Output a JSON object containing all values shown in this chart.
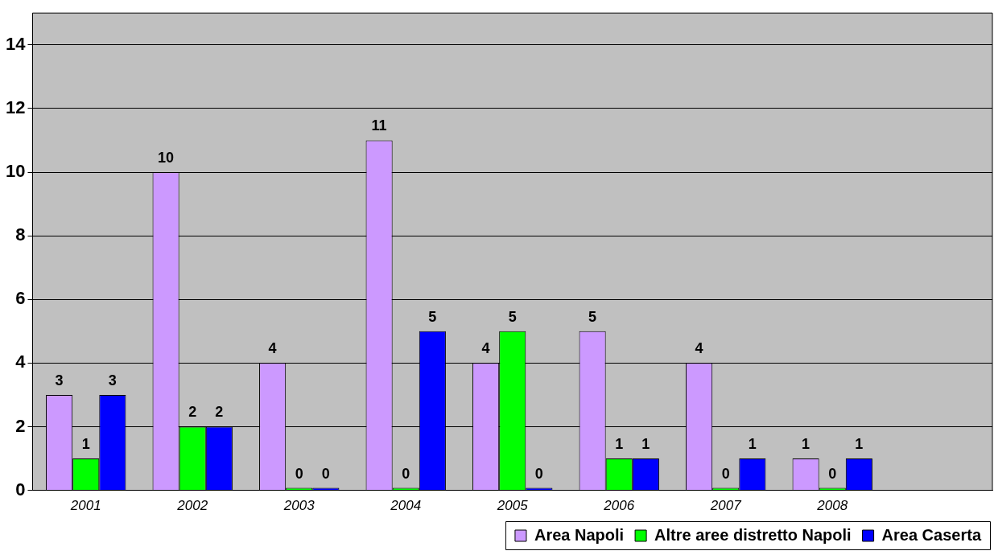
{
  "chart_data": {
    "type": "bar",
    "categories": [
      "2001",
      "2002",
      "2003",
      "2004",
      "2005",
      "2006",
      "2007",
      "2008",
      null
    ],
    "series": [
      {
        "name": "Area Napoli",
        "color": "#cc99ff",
        "values": [
          3,
          10,
          4,
          11,
          4,
          5,
          4,
          1,
          null
        ]
      },
      {
        "name": "Altre aree distretto Napoli",
        "color": "#00ff00",
        "values": [
          1,
          2,
          0,
          0,
          5,
          1,
          0,
          0,
          null
        ]
      },
      {
        "name": "Area Caserta",
        "color": "#0000ff",
        "values": [
          3,
          2,
          0,
          5,
          0,
          1,
          1,
          1,
          null
        ]
      }
    ],
    "ylim": [
      0,
      15
    ],
    "yticks": [
      0,
      2,
      4,
      6,
      8,
      10,
      12,
      14
    ],
    "grid": "y",
    "legend": "bottom right",
    "data_labels": true
  }
}
